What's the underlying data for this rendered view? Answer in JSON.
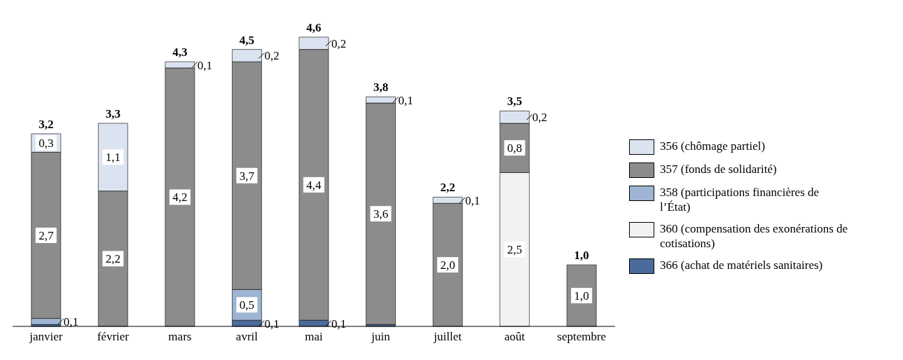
{
  "chart_data": {
    "type": "bar",
    "stacked": true,
    "legend": "right",
    "tick_labels": "x",
    "categories": [
      "janvier",
      "février",
      "mars",
      "avril",
      "mai",
      "juin",
      "juillet",
      "août",
      "septembre"
    ],
    "series": [
      {
        "name": "366 (achat de matériels sanitaires)",
        "color": "#4a6b9c",
        "values": [
          0.03,
          null,
          null,
          0.1,
          0.1,
          0.03,
          null,
          null,
          null
        ],
        "value_labels": [
          null,
          null,
          null,
          "0,1",
          "0,1",
          null,
          null,
          null,
          null
        ]
      },
      {
        "name": "360 (compensation des exonérations de cotisations)",
        "color": "#f2f2f2",
        "values": [
          null,
          null,
          null,
          null,
          null,
          null,
          null,
          2.5,
          null
        ],
        "value_labels": [
          null,
          null,
          null,
          null,
          null,
          null,
          null,
          "2,5",
          null
        ]
      },
      {
        "name": "358 (participations financières de l’État)",
        "color": "#9fb3d3",
        "values": [
          0.1,
          null,
          null,
          0.5,
          null,
          null,
          null,
          null,
          null
        ],
        "value_labels": [
          "0,1",
          null,
          null,
          "0,5",
          null,
          null,
          null,
          null,
          null
        ]
      },
      {
        "name": "357 (fonds de solidarité)",
        "color": "#8c8c8c",
        "values": [
          2.7,
          2.2,
          4.2,
          3.7,
          4.4,
          3.6,
          2.0,
          0.8,
          1.0
        ],
        "value_labels": [
          "2,7",
          "2,2",
          "4,2",
          "3,7",
          "4,4",
          "3,6",
          "2,0",
          "0,8",
          "1,0"
        ]
      },
      {
        "name": "356 (chômage partiel)",
        "color": "#dce3f0",
        "values": [
          0.3,
          1.1,
          0.1,
          0.2,
          0.2,
          0.1,
          0.1,
          0.2,
          null
        ],
        "value_labels": [
          "0,3",
          "1,1",
          "0,1",
          "0,2",
          "0,2",
          "0,1",
          "0,1",
          "0,2",
          null
        ]
      }
    ],
    "totals": [
      "3,2",
      "3,3",
      "4,3",
      "4,5",
      "4,6",
      "3,8",
      "2,2",
      "3,5",
      "1,0"
    ]
  }
}
